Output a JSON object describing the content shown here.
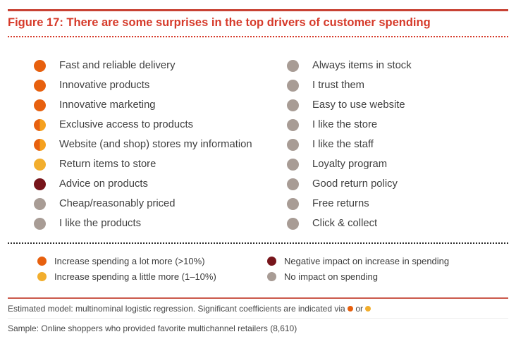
{
  "title": {
    "label": "Figure 17: There are some surprises in the top drivers of customer spending"
  },
  "drivers": {
    "left": [
      {
        "label": "Fast and reliable delivery",
        "dot": "orange",
        "impact": "increase-a-lot"
      },
      {
        "label": "Innovative products",
        "dot": "orange",
        "impact": "increase-a-lot"
      },
      {
        "label": "Innovative marketing",
        "dot": "orange",
        "impact": "increase-a-lot"
      },
      {
        "label": "Exclusive access to products",
        "dot": "orange-yellow",
        "impact": "increase-a-lot-and-a-little"
      },
      {
        "label": "Website (and shop) stores my information",
        "dot": "orange-yellow",
        "impact": "increase-a-lot-and-a-little"
      },
      {
        "label": "Return items to store",
        "dot": "yellow",
        "impact": "increase-a-little"
      },
      {
        "label": "Advice on products",
        "dot": "maroon",
        "impact": "negative"
      },
      {
        "label": "Cheap/reasonably priced",
        "dot": "gray",
        "impact": "none"
      },
      {
        "label": "I like the products",
        "dot": "gray",
        "impact": "none"
      }
    ],
    "right": [
      {
        "label": "Always items in stock",
        "dot": "gray",
        "impact": "none"
      },
      {
        "label": "I trust them",
        "dot": "gray",
        "impact": "none"
      },
      {
        "label": "Easy to use website",
        "dot": "gray",
        "impact": "none"
      },
      {
        "label": "I like the store",
        "dot": "gray",
        "impact": "none"
      },
      {
        "label": "I like the staff",
        "dot": "gray",
        "impact": "none"
      },
      {
        "label": "Loyalty program",
        "dot": "gray",
        "impact": "none"
      },
      {
        "label": "Good return policy",
        "dot": "gray",
        "impact": "none"
      },
      {
        "label": "Free returns",
        "dot": "gray",
        "impact": "none"
      },
      {
        "label": "Click & collect",
        "dot": "gray",
        "impact": "none"
      }
    ]
  },
  "legend": [
    {
      "label": "Increase spending a lot more (>10%)",
      "dot": "orange",
      "column": 1
    },
    {
      "label": "Increase spending a little more (1–10%)",
      "dot": "yellow",
      "column": 1
    },
    {
      "label": "Negative impact on increase in spending",
      "dot": "maroon",
      "column": 2
    },
    {
      "label": "No impact on spending",
      "dot": "gray",
      "column": 2
    }
  ],
  "footnotes": {
    "estimated_model": "Estimated model: multinominal logistic regression. Significant coefficients are indicated via",
    "or_word": "or",
    "sample": "Sample: Online shoppers who provided favorite multichannel retailers (8,610)"
  },
  "colors": {
    "accent_red": "#d63a2a",
    "rule_red": "#c84234",
    "footer_rule": "#cb5a4c",
    "orange": "#e7600e",
    "amber": "#f5a11f",
    "yellow": "#f2ae2d",
    "maroon": "#77151b",
    "gray": "#a89c95"
  }
}
